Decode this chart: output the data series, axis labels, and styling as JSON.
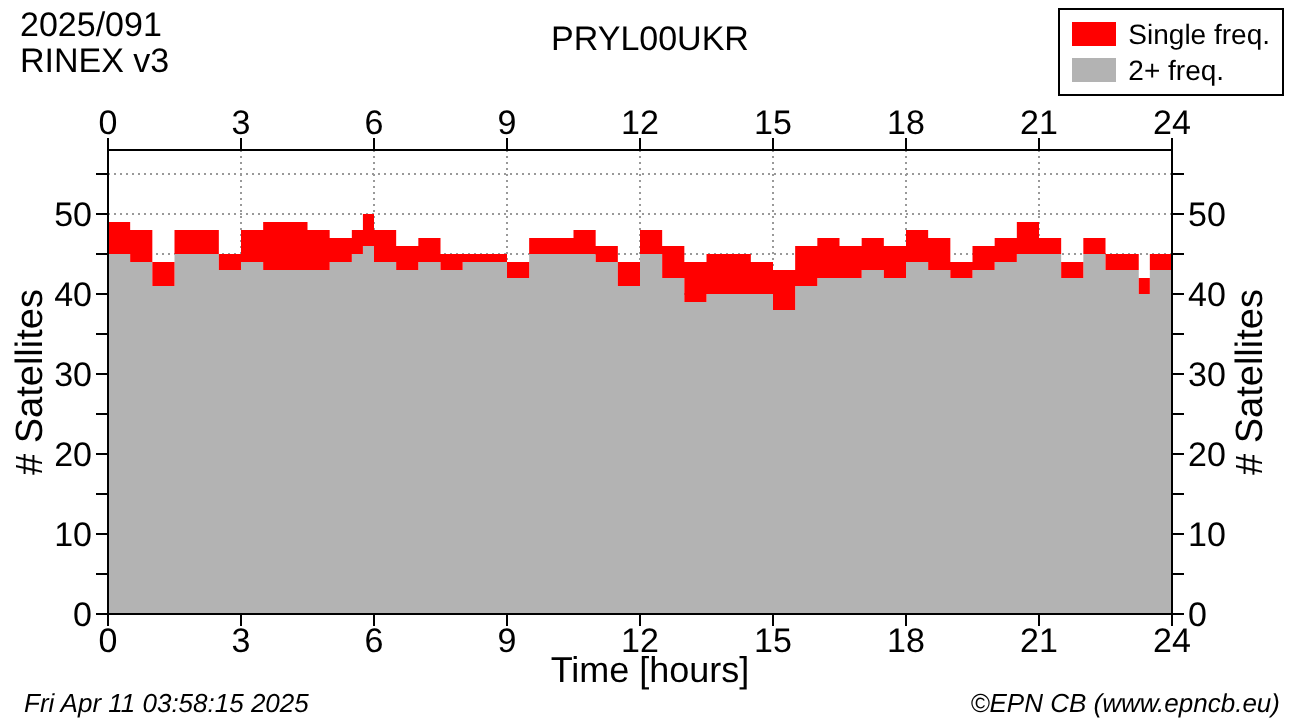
{
  "chart_data": {
    "type": "area",
    "stacked": true,
    "title": "PRYL00UKR",
    "xlabel": "Time [hours]",
    "ylabel": "# Satellites",
    "y2label": "# Satellites",
    "annotations": [
      "2025/091",
      "RINEX v3",
      "Fri Apr 11 03:58:15 2025",
      "©EPN CB (www.epncb.eu)"
    ],
    "x": [
      0,
      0.5,
      1,
      1.5,
      2,
      2.5,
      3,
      3.5,
      4,
      4.5,
      5,
      5.5,
      5.75,
      6,
      6.5,
      7,
      7.5,
      8,
      8.5,
      9,
      9.5,
      10,
      10.5,
      11,
      11.5,
      12,
      12.5,
      13,
      13.5,
      14,
      14.5,
      15,
      15.5,
      16,
      16.5,
      17,
      17.5,
      18,
      18.5,
      19,
      19.5,
      20,
      20.5,
      21,
      21.5,
      22,
      22.5,
      23,
      23.25,
      23.5,
      24
    ],
    "series": [
      {
        "name": "2+ freq.",
        "color": "#b3b3b3",
        "values": [
          45,
          44,
          41,
          45,
          45,
          43,
          44,
          43,
          43,
          43,
          44,
          45,
          46,
          44,
          43,
          44,
          43,
          44,
          44,
          42,
          45,
          45,
          45,
          44,
          41,
          45,
          42,
          39,
          40,
          40,
          40,
          38,
          41,
          42,
          42,
          43,
          42,
          44,
          43,
          42,
          43,
          44,
          45,
          45,
          42,
          45,
          43,
          43,
          40,
          43,
          46
        ]
      },
      {
        "name": "Single freq.",
        "color": "#ff0000",
        "values": [
          4,
          4,
          3,
          3,
          3,
          2,
          4,
          6,
          6,
          5,
          3,
          3,
          4,
          4,
          3,
          3,
          2,
          1,
          1,
          2,
          2,
          2,
          3,
          2,
          3,
          3,
          4,
          5,
          5,
          5,
          4,
          5,
          5,
          5,
          4,
          4,
          4,
          4,
          4,
          2,
          3,
          3,
          4,
          2,
          2,
          2,
          2,
          2,
          2,
          2,
          3
        ]
      }
    ],
    "xlim": [
      0,
      24
    ],
    "xticks": [
      0,
      3,
      6,
      9,
      12,
      15,
      18,
      21,
      24
    ],
    "x2lim": [
      0,
      24
    ],
    "x2ticks": [
      0,
      3,
      6,
      9,
      12,
      15,
      18,
      21,
      24
    ],
    "ylim": [
      0,
      58
    ],
    "yticks": [
      0,
      {
        "value": 5,
        "label": null
      },
      10,
      {
        "value": 15,
        "label": null
      },
      20,
      {
        "value": 25,
        "label": null
      },
      30,
      {
        "value": 35,
        "label": null
      },
      40,
      {
        "value": 45,
        "label": null
      },
      50,
      {
        "value": 55,
        "label": null
      }
    ],
    "y2lim": [
      0,
      58
    ],
    "y2ticks": [
      0,
      {
        "value": 5,
        "label": null
      },
      10,
      {
        "value": 15,
        "label": null
      },
      20,
      {
        "value": 25,
        "label": null
      },
      30,
      {
        "value": 35,
        "label": null
      },
      40,
      {
        "value": 45,
        "label": null
      },
      50,
      {
        "value": 55,
        "label": null
      }
    ],
    "grid": true,
    "legend": "top right"
  }
}
